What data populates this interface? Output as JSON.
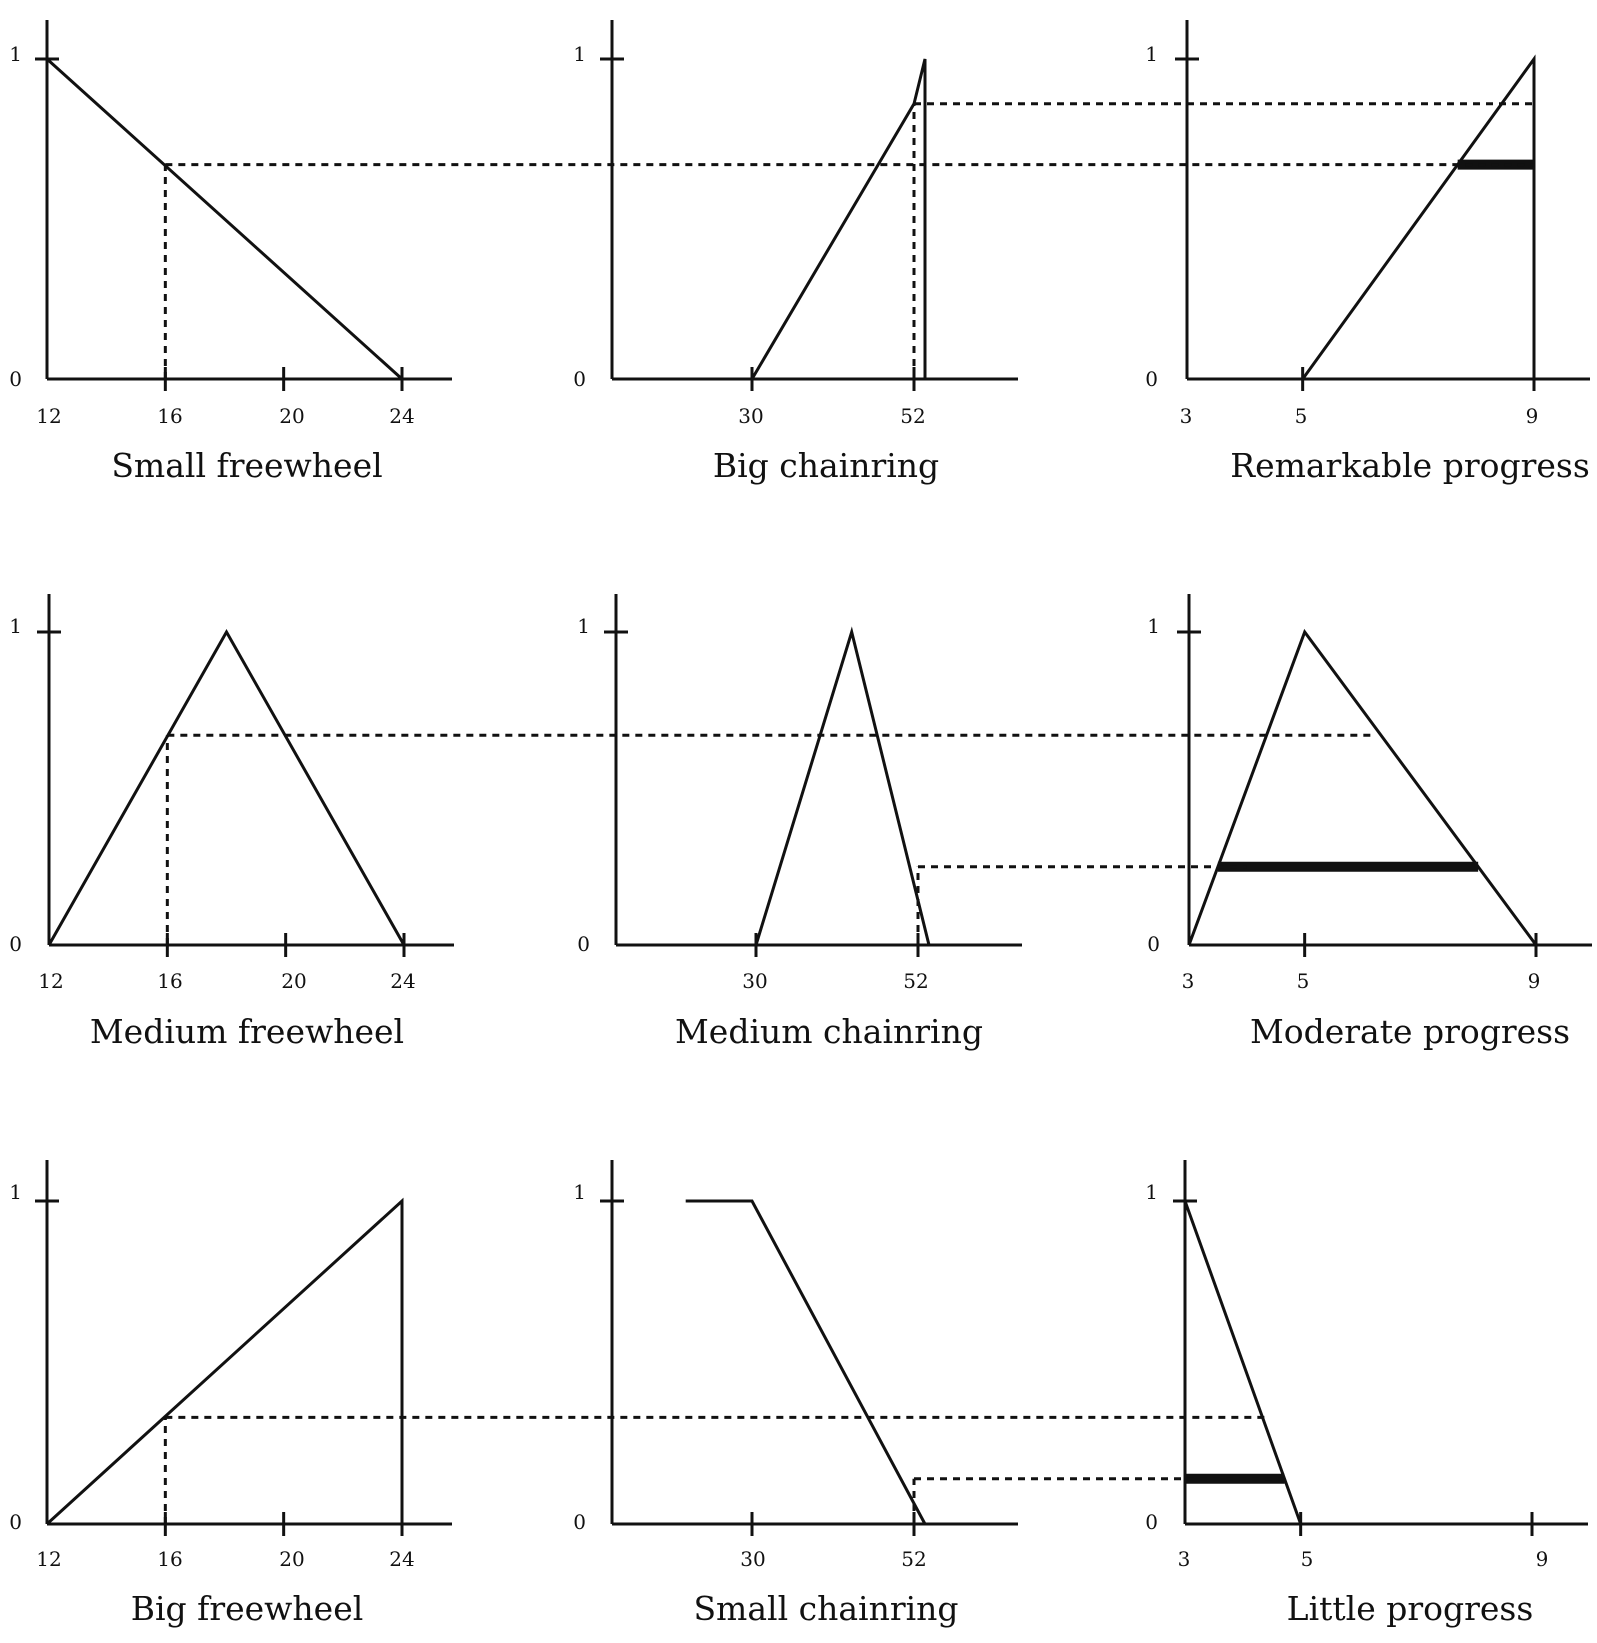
{
  "figure": {
    "rows": [
      {
        "panels": [
          {
            "title": "Small freewheel",
            "y_ticks": [
              "1",
              "0"
            ],
            "x_ticks": [
              "12",
              "16",
              "20",
              "24"
            ]
          },
          {
            "title": "Big chainring",
            "y_ticks": [
              "1",
              "0"
            ],
            "x_ticks": [
              "30",
              "52"
            ]
          },
          {
            "title": "Remarkable progress",
            "y_ticks": [
              "1",
              "0"
            ],
            "x_ticks": [
              "3",
              "5",
              "9"
            ]
          }
        ]
      },
      {
        "panels": [
          {
            "title": "Medium freewheel",
            "y_ticks": [
              "1",
              "0"
            ],
            "x_ticks": [
              "12",
              "16",
              "20",
              "24"
            ]
          },
          {
            "title": "Medium chainring",
            "y_ticks": [
              "1",
              "0"
            ],
            "x_ticks": [
              "30",
              "52"
            ]
          },
          {
            "title": "Moderate progress",
            "y_ticks": [
              "1",
              "0"
            ],
            "x_ticks": [
              "3",
              "5",
              "9"
            ]
          }
        ]
      },
      {
        "panels": [
          {
            "title": "Big freewheel",
            "y_ticks": [
              "1",
              "0"
            ],
            "x_ticks": [
              "12",
              "16",
              "20",
              "24"
            ]
          },
          {
            "title": "Small chainring",
            "y_ticks": [
              "1",
              "0"
            ],
            "x_ticks": [
              "30",
              "52"
            ]
          },
          {
            "title": "Little progress",
            "y_ticks": [
              "1",
              "0"
            ],
            "x_ticks": [
              "3",
              "5",
              "9"
            ]
          }
        ]
      }
    ]
  },
  "chart_data": [
    {
      "type": "line",
      "title": "Small freewheel",
      "x": [
        12,
        24
      ],
      "y": [
        1,
        0
      ],
      "x_ticks": [
        12,
        16,
        20,
        24
      ],
      "input": 16,
      "membership": 0.67
    },
    {
      "type": "line",
      "title": "Big chainring",
      "x": [
        30,
        52,
        53.5,
        53.5
      ],
      "y": [
        0,
        0.86,
        1,
        0
      ],
      "x_ticks": [
        30,
        52
      ],
      "input": 52,
      "membership": 0.86
    },
    {
      "type": "line",
      "title": "Remarkable progress",
      "x": [
        5,
        9,
        9
      ],
      "y": [
        0,
        1,
        0
      ],
      "x_ticks": [
        3,
        5,
        9
      ],
      "clip_level": 0.67
    },
    {
      "type": "line",
      "title": "Medium freewheel",
      "x": [
        12,
        18,
        24
      ],
      "y": [
        0,
        1,
        0
      ],
      "x_ticks": [
        12,
        16,
        20,
        24
      ],
      "input": 16,
      "membership": 0.67
    },
    {
      "type": "line",
      "title": "Medium chainring",
      "x": [
        30,
        43,
        53.5
      ],
      "y": [
        0,
        1,
        0
      ],
      "x_ticks": [
        30,
        52
      ],
      "input": 52,
      "membership": 0.25
    },
    {
      "type": "line",
      "title": "Moderate progress",
      "x": [
        3,
        5,
        9
      ],
      "y": [
        0,
        1,
        0
      ],
      "x_ticks": [
        3,
        5,
        9
      ],
      "clip_level": 0.25
    },
    {
      "type": "line",
      "title": "Big freewheel",
      "x": [
        12,
        24,
        24
      ],
      "y": [
        0,
        1,
        0
      ],
      "x_ticks": [
        12,
        16,
        20,
        24
      ],
      "input": 16,
      "membership": 0.33
    },
    {
      "type": "line",
      "title": "Small chainring",
      "x": [
        21,
        30,
        53.5
      ],
      "y": [
        1,
        1,
        0
      ],
      "x_ticks": [
        30,
        52
      ],
      "input": 52,
      "membership": 0.14
    },
    {
      "type": "line",
      "title": "Little progress",
      "x": [
        3,
        5
      ],
      "y": [
        1,
        0
      ],
      "x_ticks": [
        3,
        5,
        9
      ],
      "clip_level": 0.14
    }
  ]
}
